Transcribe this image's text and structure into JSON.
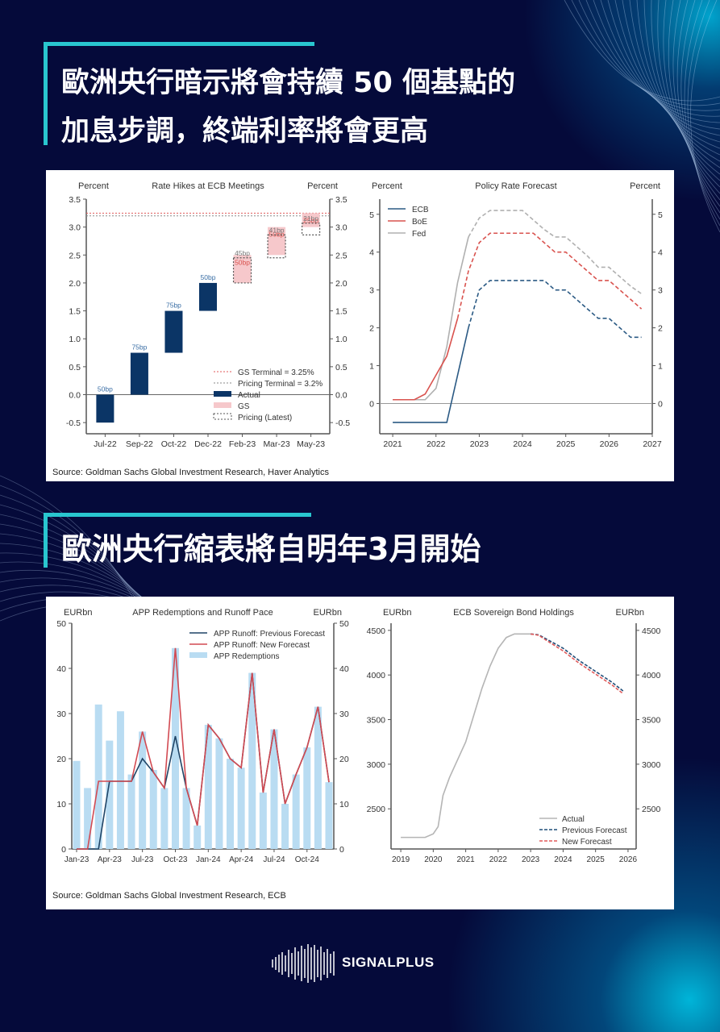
{
  "headings": {
    "section1_line1": "歐洲央行暗示將會持續 50 個基點的",
    "section1_line2": "加息步調，終端利率將會更高",
    "section2_line1": "歐洲央行縮表將自明年3月開始"
  },
  "sources": {
    "panel1": "Source: Goldman Sachs Global Investment Research, Haver Analytics",
    "panel2": "Source: Goldman Sachs Global Investment Research, ECB"
  },
  "brand": {
    "name": "SIGNALPLUS",
    "accent": "#29c6cf",
    "background": "#050a3a"
  },
  "chart_data": [
    {
      "id": "rate_hikes",
      "type": "bar",
      "title": "Rate Hikes at ECB Meetings",
      "ylabel_left": "Percent",
      "ylabel_right": "Percent",
      "ylim": [
        -0.7,
        3.5
      ],
      "yticks": [
        -0.5,
        0.0,
        0.5,
        1.0,
        1.5,
        2.0,
        2.5,
        3.0,
        3.5
      ],
      "categories": [
        "Jul-22",
        "Sep-22",
        "Oct-22",
        "Dec-22",
        "Feb-23",
        "Mar-23",
        "May-23"
      ],
      "actual": [
        {
          "cat": "Jul-22",
          "from": -0.5,
          "to": 0.0,
          "label": "50bp"
        },
        {
          "cat": "Sep-22",
          "from": 0.0,
          "to": 0.75,
          "label": "75bp"
        },
        {
          "cat": "Oct-22",
          "from": 0.75,
          "to": 1.5,
          "label": "75bp"
        },
        {
          "cat": "Dec-22",
          "from": 1.5,
          "to": 2.0,
          "label": "50bp"
        }
      ],
      "gs": [
        {
          "cat": "Feb-23",
          "from": 2.0,
          "to": 2.5,
          "label": "50bp"
        },
        {
          "cat": "Mar-23",
          "from": 2.5,
          "to": 3.0,
          "label": "50bp"
        },
        {
          "cat": "May-23",
          "from": 3.0,
          "to": 3.25,
          "label": "25bp"
        }
      ],
      "pricing": [
        {
          "cat": "Feb-23",
          "from": 2.0,
          "to": 2.45,
          "label": "45bp"
        },
        {
          "cat": "Mar-23",
          "from": 2.45,
          "to": 2.86,
          "label": "41bp"
        },
        {
          "cat": "May-23",
          "from": 2.86,
          "to": 3.07,
          "label": "21bp"
        }
      ],
      "hlines": [
        {
          "name": "GS Terminal = 3.25%",
          "value": 3.25,
          "color": "#e05a5a"
        },
        {
          "name": "Pricing Terminal = 3.2%",
          "value": 3.2,
          "color": "#8a8a8a"
        }
      ],
      "legend": [
        "GS Terminal = 3.25%",
        "Pricing Terminal = 3.2%",
        "Actual",
        "GS",
        "Pricing (Latest)"
      ],
      "colors": {
        "actual": "#0b3566",
        "gs": "#f6c8cb",
        "pricing": "#555555"
      }
    },
    {
      "id": "policy_rate_forecast",
      "type": "line",
      "title": "Policy Rate Forecast",
      "ylabel_left": "Percent",
      "ylabel_right": "Percent",
      "ylim": [
        -0.8,
        5.4
      ],
      "yticks": [
        0,
        1,
        2,
        3,
        4,
        5
      ],
      "xlim": [
        2020.7,
        2027
      ],
      "xticks": [
        2021,
        2022,
        2023,
        2024,
        2025,
        2026,
        2027
      ],
      "forecast_start": {
        "ECB": 2022.75,
        "BoE": 2022.5,
        "Fed": 2022.75
      },
      "series": [
        {
          "name": "ECB",
          "color": "#2b5a84",
          "x": [
            2021,
            2021.5,
            2022,
            2022.25,
            2022.75,
            2023.0,
            2023.25,
            2023.5,
            2024.0,
            2024.5,
            2024.75,
            2025.0,
            2025.5,
            2025.75,
            2026.0,
            2026.5,
            2026.75
          ],
          "y": [
            -0.5,
            -0.5,
            -0.5,
            -0.5,
            2.0,
            3.0,
            3.25,
            3.25,
            3.25,
            3.25,
            3.0,
            3.0,
            2.5,
            2.25,
            2.25,
            1.75,
            1.75
          ]
        },
        {
          "name": "BoE",
          "color": "#d9534f",
          "x": [
            2021,
            2021.5,
            2021.75,
            2022.0,
            2022.25,
            2022.5,
            2022.75,
            2023.0,
            2023.25,
            2023.5,
            2024.0,
            2024.25,
            2024.75,
            2025.0,
            2025.5,
            2025.75,
            2026.0,
            2026.5,
            2026.75
          ],
          "y": [
            0.1,
            0.1,
            0.25,
            0.75,
            1.25,
            2.25,
            3.5,
            4.25,
            4.5,
            4.5,
            4.5,
            4.5,
            4.0,
            4.0,
            3.5,
            3.25,
            3.25,
            2.75,
            2.5
          ]
        },
        {
          "name": "Fed",
          "color": "#b0b0b0",
          "x": [
            2021,
            2021.5,
            2021.75,
            2022.0,
            2022.25,
            2022.5,
            2022.75,
            2023.0,
            2023.25,
            2023.5,
            2024.0,
            2024.5,
            2024.75,
            2025.0,
            2025.5,
            2025.75,
            2026.0,
            2026.5,
            2026.75
          ],
          "y": [
            0.1,
            0.1,
            0.1,
            0.4,
            1.5,
            3.2,
            4.4,
            4.9,
            5.1,
            5.1,
            5.1,
            4.6,
            4.4,
            4.4,
            3.9,
            3.6,
            3.6,
            3.1,
            2.9
          ]
        }
      ],
      "legend": [
        "ECB",
        "BoE",
        "Fed"
      ]
    },
    {
      "id": "app_redemptions",
      "type": "bar",
      "title": "APP Redemptions and Runoff Pace",
      "ylabel_left": "EURbn",
      "ylabel_right": "EURbn",
      "ylim": [
        0,
        50
      ],
      "yticks": [
        0,
        10,
        20,
        30,
        40,
        50
      ],
      "categories": [
        "Jan-23",
        "Feb-23",
        "Mar-23",
        "Apr-23",
        "May-23",
        "Jun-23",
        "Jul-23",
        "Aug-23",
        "Sep-23",
        "Oct-23",
        "Nov-23",
        "Dec-23",
        "Jan-24",
        "Feb-24",
        "Mar-24",
        "Apr-24",
        "May-24",
        "Jun-24",
        "Jul-24",
        "Aug-24",
        "Sep-24",
        "Oct-24",
        "Nov-24",
        "Dec-24"
      ],
      "xtick_labels": [
        "Jan-23",
        "Apr-23",
        "Jul-23",
        "Oct-23",
        "Jan-24",
        "Apr-24",
        "Jul-24",
        "Oct-24"
      ],
      "series": [
        {
          "name": "APP Redemptions",
          "type": "bar",
          "color": "#b9dcf2",
          "values": [
            19.5,
            13.5,
            32,
            24,
            30.5,
            16.5,
            26,
            17.5,
            13.5,
            44.5,
            13.5,
            5.2,
            27.5,
            24.5,
            20,
            18,
            39,
            12.5,
            26.5,
            10,
            16.5,
            22.5,
            31.5,
            14.8
          ]
        },
        {
          "name": "APP Runoff: Previous Forecast",
          "type": "line",
          "color": "#1f4466",
          "values": [
            0,
            0,
            0,
            15,
            15,
            15,
            20,
            17,
            13.5,
            25,
            13.5,
            5.2,
            27.5,
            24.5,
            20,
            18,
            39,
            12.5,
            26.5,
            10,
            16.5,
            22.5,
            31.5,
            14.8
          ]
        },
        {
          "name": "APP Runoff: New Forecast",
          "type": "line",
          "color": "#d24a52",
          "values": [
            0,
            0,
            15,
            15,
            15,
            15,
            26,
            17,
            13.5,
            44.5,
            13.5,
            5.2,
            27.5,
            24.5,
            20,
            18,
            39,
            12.5,
            26.5,
            10,
            16.5,
            22.5,
            31.5,
            14.8
          ]
        }
      ],
      "legend": [
        "APP Runoff: Previous Forecast",
        "APP Runoff: New Forecast",
        "APP Redemptions"
      ]
    },
    {
      "id": "ecb_sovereign_holdings",
      "type": "line",
      "title": "ECB Sovereign Bond Holdings",
      "ylabel_left": "EURbn",
      "ylabel_right": "EURbn",
      "ylim": [
        2050,
        4580
      ],
      "yticks": [
        2500,
        3000,
        3500,
        4000,
        4500
      ],
      "xlim": [
        2018.7,
        2026.25
      ],
      "xticks": [
        2019,
        2020,
        2021,
        2022,
        2023,
        2024,
        2025,
        2026
      ],
      "series": [
        {
          "name": "Actual",
          "color": "#b5b5b5",
          "dash": false,
          "x": [
            2019,
            2019.5,
            2019.75,
            2020.0,
            2020.15,
            2020.3,
            2020.5,
            2020.75,
            2021.0,
            2021.25,
            2021.5,
            2021.75,
            2022.0,
            2022.25,
            2022.5,
            2022.75,
            2023.0
          ],
          "y": [
            2180,
            2180,
            2180,
            2220,
            2300,
            2650,
            2850,
            3050,
            3250,
            3550,
            3850,
            4100,
            4300,
            4420,
            4460,
            4460,
            4460
          ]
        },
        {
          "name": "Previous Forecast",
          "color": "#1f4e79",
          "dash": true,
          "x": [
            2023.0,
            2023.25,
            2023.5,
            2024.0,
            2024.5,
            2025.0,
            2025.5,
            2025.85
          ],
          "y": [
            4460,
            4450,
            4400,
            4300,
            4160,
            4040,
            3920,
            3820
          ]
        },
        {
          "name": "New Forecast",
          "color": "#e05a5a",
          "dash": true,
          "x": [
            2023.0,
            2023.25,
            2023.5,
            2024.0,
            2024.5,
            2025.0,
            2025.5,
            2025.85
          ],
          "y": [
            4460,
            4445,
            4385,
            4270,
            4130,
            4010,
            3890,
            3790
          ]
        }
      ],
      "legend": [
        "Actual",
        "Previous Forecast",
        "New Forecast"
      ]
    }
  ]
}
